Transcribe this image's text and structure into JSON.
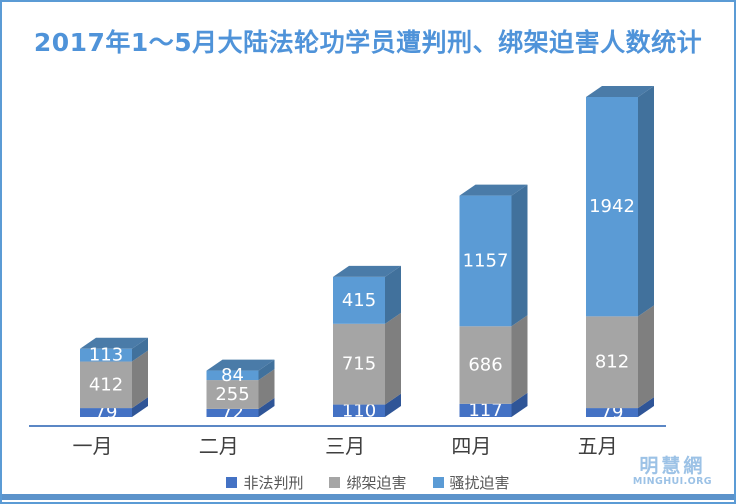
{
  "chart_data": {
    "type": "bar",
    "variant": "3d-stacked-column",
    "title": "2017年1～5月大陆法轮功学员遭判刑、绑架迫害人数统计",
    "categories": [
      "一月",
      "二月",
      "三月",
      "四月",
      "五月"
    ],
    "series": [
      {
        "name": "非法判刑",
        "values": [
          79,
          72,
          110,
          117,
          79
        ],
        "color": "#4472c4",
        "side_color": "#2f5597"
      },
      {
        "name": "绑架迫害",
        "values": [
          412,
          255,
          715,
          686,
          812
        ],
        "color": "#a5a5a5",
        "side_color": "#7f7f7f"
      },
      {
        "name": "骚扰迫害",
        "values": [
          113,
          84,
          415,
          1157,
          1942
        ],
        "color": "#5b9bd5",
        "side_color": "#41719c",
        "top_color": "#4a7ba8"
      }
    ],
    "value_label_color": "#ffffff",
    "xlabel": "",
    "ylabel": "",
    "gridlines": false,
    "legend_position": "bottom",
    "axis_line_color": "#5b87c5"
  },
  "branding": {
    "logo_cn": "明慧網",
    "logo_en": "MINGHUI.ORG",
    "logo_color": "#9cc2e6"
  },
  "colors": {
    "border": "#5b9bd5",
    "footer_bar": "#5c93cb",
    "title_text": "#4f93d9",
    "month_label": "#3f3f3f",
    "legend_text": "#595959"
  }
}
